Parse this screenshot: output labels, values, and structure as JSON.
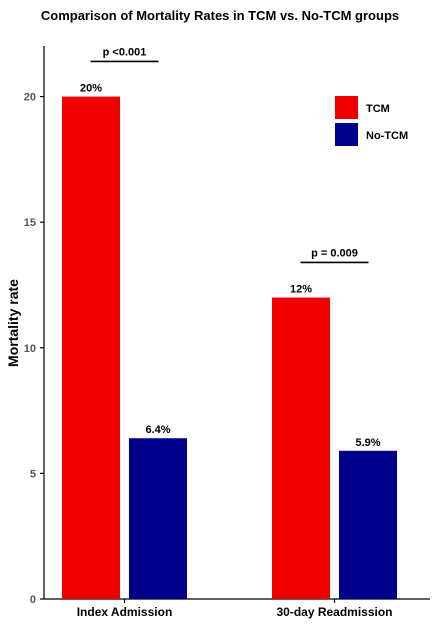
{
  "chart_data": {
    "type": "bar",
    "title": "Comparison of Mortality Rates in TCM vs. No-TCM groups",
    "xlabel": "",
    "ylabel": "Mortality rate",
    "ylim": [
      0,
      22
    ],
    "yticks": [
      0,
      5,
      10,
      15,
      20
    ],
    "categories": [
      "Index Admission",
      "30-day Readmission"
    ],
    "series": [
      {
        "name": "TCM",
        "color": "#ee0000",
        "values": [
          20,
          12
        ],
        "labels": [
          "20%",
          "12%"
        ]
      },
      {
        "name": "No-TCM",
        "color": "#00008b",
        "values": [
          6.4,
          5.9
        ],
        "labels": [
          "6.4%",
          "5.9%"
        ]
      }
    ],
    "annotations": [
      {
        "category": "Index Admission",
        "text": "p <0.001",
        "y": 21.4
      },
      {
        "category": "30-day Readmission",
        "text": "p = 0.009",
        "y": 13.4
      }
    ],
    "grid": false,
    "legend_position": "top-right"
  }
}
